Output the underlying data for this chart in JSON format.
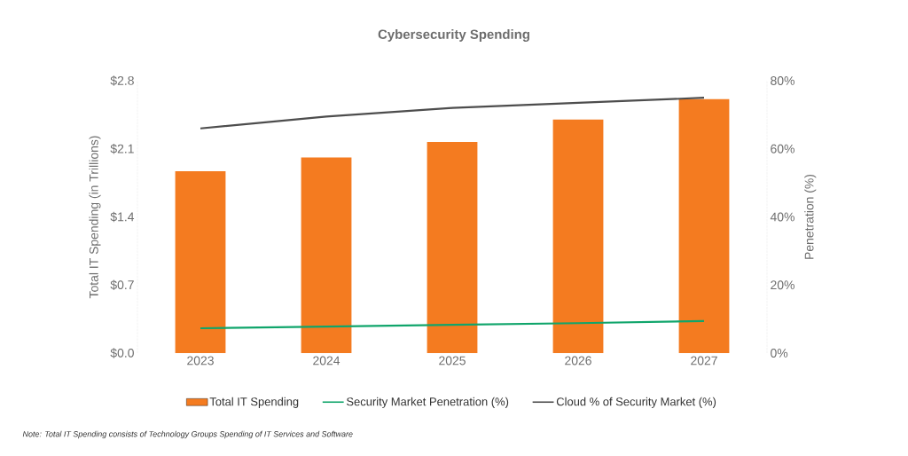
{
  "chart_data": {
    "type": "bar",
    "title": "Cybersecurity Spending",
    "categories": [
      "2023",
      "2024",
      "2025",
      "2026",
      "2027"
    ],
    "series": [
      {
        "name": "Total IT Spending",
        "color": "#f47b20",
        "values": [
          1.87,
          2.01,
          2.17,
          2.4,
          2.61
        ]
      },
      {
        "name": "Security Market Penetration (%)",
        "type": "line",
        "axis": "y2",
        "color": "#10a56b",
        "values": [
          7.3,
          7.8,
          8.3,
          8.8,
          9.4
        ]
      },
      {
        "name": "Cloud % of Security Market (%)",
        "type": "line",
        "axis": "y2",
        "color": "#4d4d4d",
        "values": [
          66,
          69.5,
          72,
          73.5,
          75
        ]
      }
    ],
    "ylabel": "Total IT Spending (in Trillions)",
    "y2label": "Penetration (%)",
    "ylim": [
      0,
      2.8
    ],
    "yticks": [
      {
        "value": 0,
        "label": "$0.0"
      },
      {
        "value": 0.7,
        "label": "$0.7"
      },
      {
        "value": 1.4,
        "label": "$1.4"
      },
      {
        "value": 2.1,
        "label": "$2.1"
      },
      {
        "value": 2.8,
        "label": "$2.8"
      }
    ],
    "y2lim": [
      0,
      80
    ],
    "y2ticks": [
      {
        "value": 0,
        "label": "0%"
      },
      {
        "value": 20,
        "label": "20%"
      },
      {
        "value": 40,
        "label": "40%"
      },
      {
        "value": 60,
        "label": "60%"
      },
      {
        "value": 80,
        "label": "80%"
      }
    ],
    "legend": "bottom",
    "line_style": "solid",
    "marker": "none",
    "grid": false,
    "annotations": [
      "Note: Total IT Spending consists of Technology Groups Spending of IT Services and Software"
    ]
  }
}
